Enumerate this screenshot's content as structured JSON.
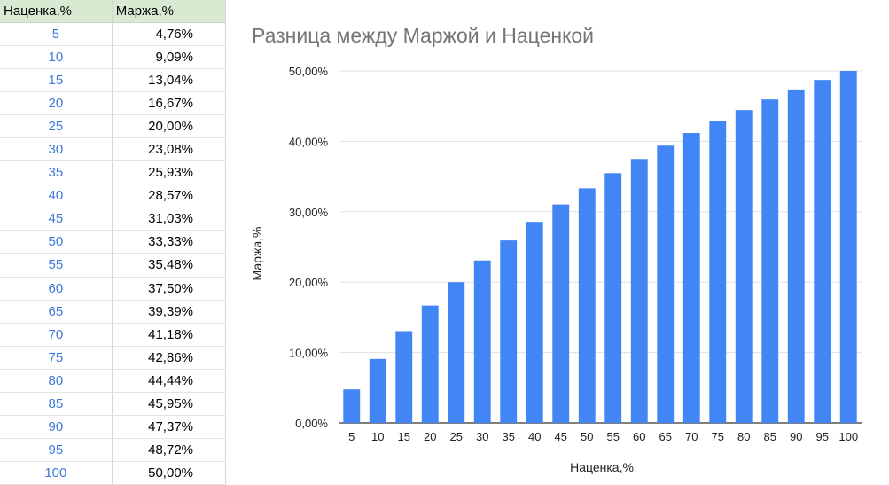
{
  "table": {
    "headers": [
      "Наценка,%",
      "Маржа,%"
    ],
    "rows": [
      [
        "5",
        "4,76%"
      ],
      [
        "10",
        "9,09%"
      ],
      [
        "15",
        "13,04%"
      ],
      [
        "20",
        "16,67%"
      ],
      [
        "25",
        "20,00%"
      ],
      [
        "30",
        "23,08%"
      ],
      [
        "35",
        "25,93%"
      ],
      [
        "40",
        "28,57%"
      ],
      [
        "45",
        "31,03%"
      ],
      [
        "50",
        "33,33%"
      ],
      [
        "55",
        "35,48%"
      ],
      [
        "60",
        "37,50%"
      ],
      [
        "65",
        "39,39%"
      ],
      [
        "70",
        "41,18%"
      ],
      [
        "75",
        "42,86%"
      ],
      [
        "80",
        "44,44%"
      ],
      [
        "85",
        "45,95%"
      ],
      [
        "90",
        "47,37%"
      ],
      [
        "95",
        "48,72%"
      ],
      [
        "100",
        "50,00%"
      ]
    ]
  },
  "chart_data": {
    "type": "bar",
    "title": "Разница между Маржой и Наценкой",
    "xlabel": "Наценка,%",
    "ylabel": "Маржа,%",
    "categories": [
      "5",
      "10",
      "15",
      "20",
      "25",
      "30",
      "35",
      "40",
      "45",
      "50",
      "55",
      "60",
      "65",
      "70",
      "75",
      "80",
      "85",
      "90",
      "95",
      "100"
    ],
    "values": [
      4.76,
      9.09,
      13.04,
      16.67,
      20.0,
      23.08,
      25.93,
      28.57,
      31.03,
      33.33,
      35.48,
      37.5,
      39.39,
      41.18,
      42.86,
      44.44,
      45.95,
      47.37,
      48.72,
      50.0
    ],
    "ylim": [
      0,
      50
    ],
    "yticks": [
      "0,00%",
      "10,00%",
      "20,00%",
      "30,00%",
      "40,00%",
      "50,00%"
    ],
    "grid": true,
    "legend": "none",
    "bar_color": "#4285f4",
    "grid_color": "#e0e0e0",
    "baseline_color": "#333333"
  },
  "colors": {
    "header_bg": "#d9ead3",
    "number_text": "#3d78d8",
    "title_text": "#757575"
  }
}
